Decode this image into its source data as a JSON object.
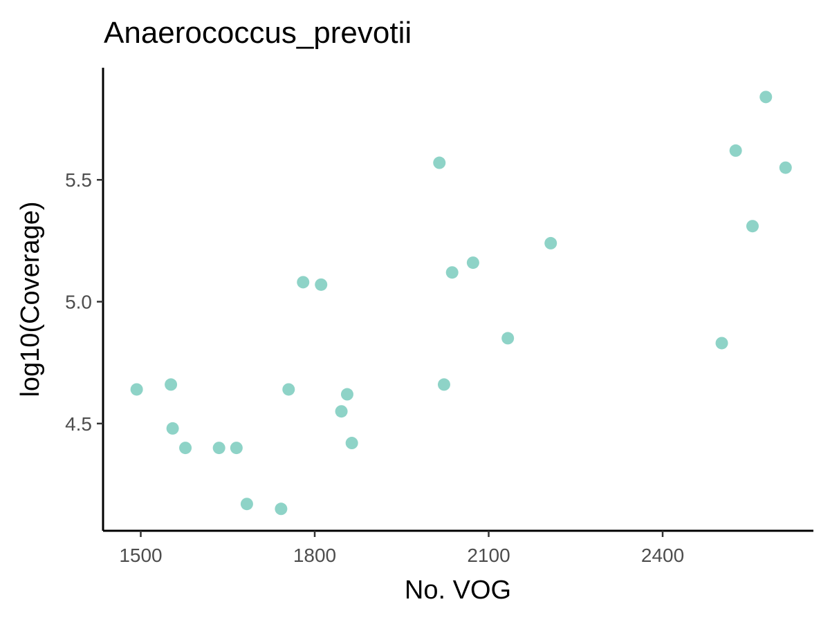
{
  "chart_data": {
    "type": "scatter",
    "title": "Anaerococcus_prevotii",
    "xlabel": "No. VOG",
    "ylabel": "log10(Coverage)",
    "xlim": [
      1435,
      2660
    ],
    "ylim": [
      4.06,
      5.96
    ],
    "xticks": [
      1500,
      1800,
      2100,
      2400
    ],
    "xtick_labels": [
      "1500",
      "1800",
      "2100",
      "2400"
    ],
    "yticks": [
      4.5,
      5.0,
      5.5
    ],
    "ytick_labels": [
      "4.5",
      "5.0",
      "5.5"
    ],
    "grid": false,
    "legend": "none",
    "point_color": "#8ED3C7",
    "points": [
      {
        "x": 1493,
        "y": 4.64
      },
      {
        "x": 1552,
        "y": 4.66
      },
      {
        "x": 1555,
        "y": 4.48
      },
      {
        "x": 1577,
        "y": 4.4
      },
      {
        "x": 1635,
        "y": 4.4
      },
      {
        "x": 1665,
        "y": 4.4
      },
      {
        "x": 1683,
        "y": 4.17
      },
      {
        "x": 1742,
        "y": 4.15
      },
      {
        "x": 1755,
        "y": 4.64
      },
      {
        "x": 1780,
        "y": 5.08
      },
      {
        "x": 1811,
        "y": 5.07
      },
      {
        "x": 1846,
        "y": 4.55
      },
      {
        "x": 1856,
        "y": 4.62
      },
      {
        "x": 1864,
        "y": 4.42
      },
      {
        "x": 2015,
        "y": 5.57
      },
      {
        "x": 2023,
        "y": 4.66
      },
      {
        "x": 2037,
        "y": 5.12
      },
      {
        "x": 2073,
        "y": 5.16
      },
      {
        "x": 2133,
        "y": 4.85
      },
      {
        "x": 2207,
        "y": 5.24
      },
      {
        "x": 2502,
        "y": 4.83
      },
      {
        "x": 2526,
        "y": 5.62
      },
      {
        "x": 2555,
        "y": 5.31
      },
      {
        "x": 2578,
        "y": 5.84
      },
      {
        "x": 2612,
        "y": 5.55
      }
    ]
  }
}
